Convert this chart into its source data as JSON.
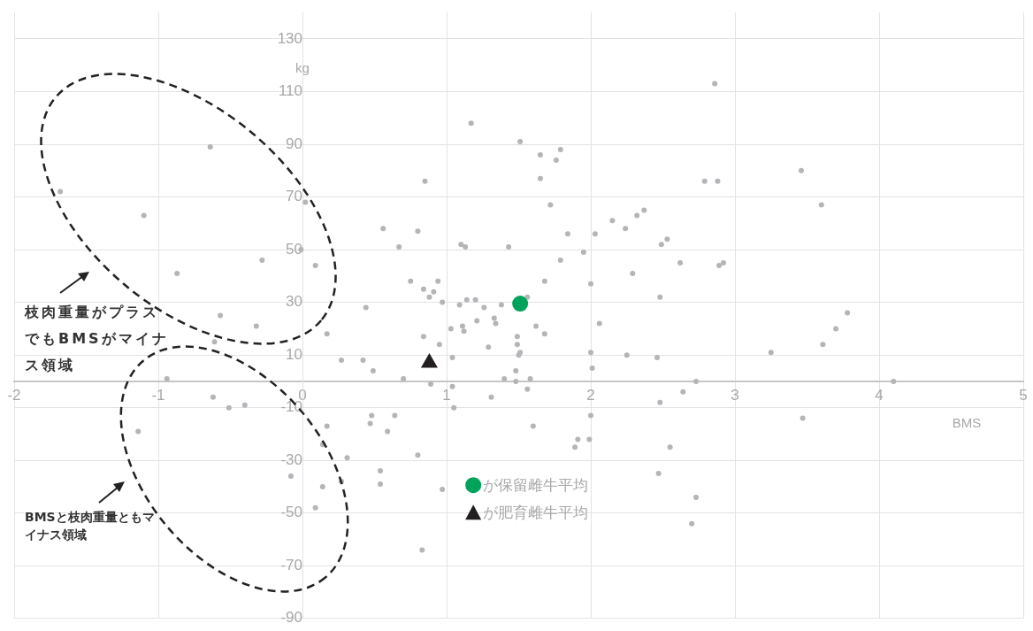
{
  "chart_data": {
    "type": "scatter",
    "xlabel": "BMS",
    "ylabel": "kg",
    "xlim": [
      -2,
      5
    ],
    "xticks": [
      -2,
      -1,
      0,
      1,
      2,
      3,
      4,
      5
    ],
    "ylim": [
      -90,
      140
    ],
    "yticks": [
      -90,
      -70,
      -50,
      -30,
      -10,
      10,
      30,
      50,
      70,
      90,
      110,
      130
    ],
    "grid": true,
    "legend": "bottom",
    "marker": "circle",
    "annotations": [
      "枝肉重量がプラスでもBMSがマイナス領域",
      "BMSと枝肉重量ともマイナス領域"
    ],
    "series": [
      {
        "color": "#b5b5b9",
        "x": [
          -1.68,
          -1.1,
          -0.64,
          -0.87,
          -0.28,
          0.02,
          -0.01,
          0.09,
          -0.57,
          1.17,
          1.51,
          1.65,
          1.79,
          1.76,
          1.65,
          0.85,
          1.72,
          0.56,
          0.8,
          0.67,
          1.1,
          1.13,
          1.43,
          1.84,
          2.03,
          2.15,
          2.24,
          2.32,
          2.37,
          2.49,
          2.53,
          2.62,
          1.95,
          1.79,
          1.68,
          2.0,
          2.29,
          2.48,
          0.75,
          0.94,
          0.84,
          0.91,
          0.88,
          0.97,
          1.09,
          1.14,
          1.2,
          1.26,
          1.38,
          1.56,
          0.44,
          1.33,
          2.86,
          2.79,
          2.88,
          3.46,
          3.6,
          2.89,
          2.92,
          3.78,
          -0.32,
          -0.61,
          0.17,
          0.27,
          -0.94,
          -0.62,
          -0.51,
          -0.4,
          -1.14,
          0.17,
          0.14,
          0.31,
          -0.08,
          0.14,
          0.27,
          0.09,
          1.21,
          1.34,
          1.03,
          1.11,
          1.12,
          1.62,
          1.68,
          2.06,
          0.84,
          0.95,
          1.49,
          1.49,
          1.51,
          1.5,
          1.29,
          2.0,
          2.25,
          2.46,
          0.42,
          0.49,
          1.04,
          1.48,
          2.01,
          0.7,
          1.4,
          1.48,
          1.58,
          0.89,
          1.04,
          1.56,
          1.31,
          1.05,
          2.48,
          2.64,
          0.48,
          0.64,
          0.47,
          0.59,
          1.6,
          2.0,
          1.99,
          1.91,
          1.89,
          2.55,
          0.8,
          0.54,
          0.54,
          0.97,
          2.47,
          0.83,
          3.25,
          3.61,
          3.7,
          2.73,
          4.1,
          3.47,
          2.73,
          2.7
        ],
        "values": [
          72,
          63,
          89,
          41,
          46,
          68,
          50,
          44,
          25,
          98,
          91,
          86,
          88,
          84,
          77,
          76,
          67,
          58,
          57,
          51,
          52,
          51,
          51,
          56,
          56,
          61,
          58,
          63,
          65,
          52,
          54,
          45,
          49,
          46,
          38,
          37,
          41,
          32,
          38,
          38,
          35,
          34,
          32,
          30,
          29,
          31,
          31,
          28,
          29,
          32,
          28,
          24,
          113,
          76,
          76,
          80,
          67,
          44,
          45,
          26,
          21,
          15,
          18,
          8,
          1,
          -6,
          -10,
          -9,
          -19,
          -17,
          -24,
          -29,
          -36,
          -40,
          -38,
          -48,
          23,
          22,
          20,
          21,
          19,
          21,
          18,
          22,
          17,
          14,
          17,
          14,
          11,
          10,
          13,
          11,
          10,
          9,
          8,
          4,
          9,
          4,
          5,
          1,
          1,
          0,
          1,
          -1,
          -2,
          -3,
          -6,
          -10,
          -8,
          -4,
          -13,
          -13,
          -16,
          -19,
          -17,
          -13,
          -22,
          -22,
          -25,
          -25,
          -28,
          -34,
          -39,
          -41,
          -35,
          -64,
          11,
          14,
          20,
          0,
          0,
          -14,
          -44,
          -54
        ]
      },
      {
        "name": "が保留雌牛平均",
        "color": "#00a35a",
        "x": [
          1.51
        ],
        "values": [
          29.5
        ]
      },
      {
        "name": "が肥育雌牛平均",
        "color": "#231f20",
        "marker": "triangle",
        "x": [
          0.88
        ],
        "values": [
          7
        ]
      }
    ]
  }
}
